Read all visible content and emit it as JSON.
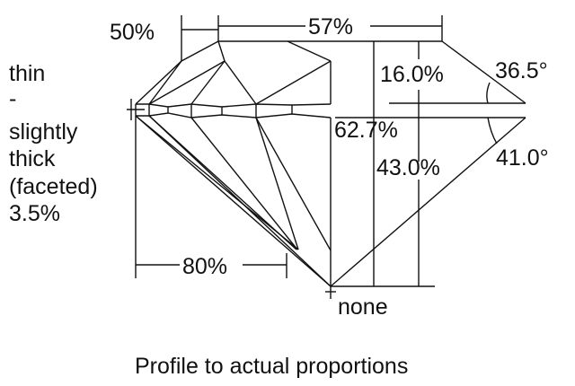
{
  "diagram": {
    "caption": "Profile to actual proportions",
    "girdle_label": [
      "thin",
      "-",
      "slightly",
      "thick",
      "(faceted)",
      "3.5%"
    ],
    "crown_upper_girdle_pct": "50%",
    "table_pct": "57%",
    "crown_height_pct": "16.0%",
    "crown_angle": "36.5°",
    "total_depth_pct": "62.7%",
    "pavilion_depth_pct": "43.0%",
    "pavilion_angle": "41.0°",
    "lower_girdle_pct": "80%",
    "culet": "none"
  }
}
